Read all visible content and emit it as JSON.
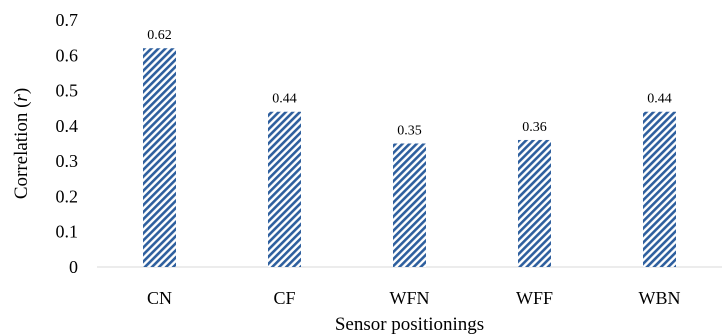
{
  "chart_data": {
    "type": "bar",
    "categories": [
      "CN",
      "CF",
      "WFN",
      "WFF",
      "WBN"
    ],
    "values": [
      0.62,
      0.44,
      0.35,
      0.36,
      0.44
    ],
    "data_labels": [
      "0.62",
      "0.44",
      "0.35",
      "0.36",
      "0.44"
    ],
    "xlabel": "Sensor positionings",
    "ylabel_prefix": "Correlation (",
    "ylabel_var": "r",
    "ylabel_suffix": ")",
    "ylim": [
      0,
      0.7
    ],
    "yticks": [
      "0",
      "0.1",
      "0.2",
      "0.3",
      "0.4",
      "0.5",
      "0.6",
      "0.7"
    ],
    "grid": false,
    "bar_pattern": "diagonal-stripes",
    "bar_color": "#2e5f9e"
  }
}
